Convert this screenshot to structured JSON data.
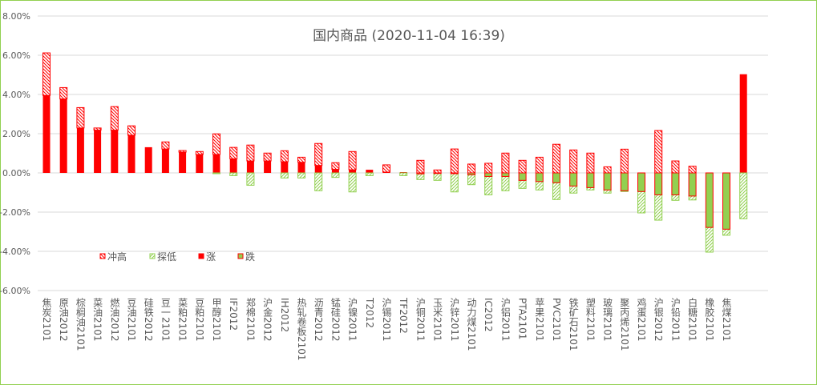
{
  "chart_data": {
    "type": "bar",
    "stacked": true,
    "title": "国内商品 (2020-11-04 16:39)",
    "ylim": [
      -6,
      8
    ],
    "yticks": [
      "8.00%",
      "6.00%",
      "4.00%",
      "2.00%",
      "0.00%",
      "-2.00%",
      "-4.00%",
      "-6.00%"
    ],
    "ytick_values": [
      8,
      6,
      4,
      2,
      0,
      -2,
      -4,
      -6
    ],
    "grid": true,
    "legend_placement": "bottom-left",
    "legend": [
      {
        "name": "冲高",
        "style": "hatch",
        "color": "#ff0000"
      },
      {
        "name": "探低",
        "style": "hatch",
        "color": "#92d050"
      },
      {
        "name": "涨",
        "style": "solid",
        "color": "#ff0000"
      },
      {
        "name": "跌",
        "style": "solid",
        "color": "#92d050"
      }
    ],
    "units": "%",
    "items": [
      {
        "name": "焦炭2101",
        "high": 6.12,
        "close": 3.95,
        "low": 0
      },
      {
        "name": "原油2012",
        "high": 4.35,
        "close": 3.77,
        "low": 0
      },
      {
        "name": "棕榈油2101",
        "high": 3.33,
        "close": 2.29,
        "low": 0
      },
      {
        "name": "菜油2101",
        "high": 2.29,
        "close": 2.18,
        "low": 0
      },
      {
        "name": "燃油2012",
        "high": 3.38,
        "close": 2.18,
        "low": 0
      },
      {
        "name": "豆油2101",
        "high": 2.4,
        "close": 1.92,
        "low": 0
      },
      {
        "name": "硅铁2012",
        "high": 1.31,
        "close": 1.31,
        "low": 0
      },
      {
        "name": "豆一2101",
        "high": 1.58,
        "close": 1.22,
        "low": 0
      },
      {
        "name": "菜粕2101",
        "high": 1.14,
        "close": 1.06,
        "low": 0
      },
      {
        "name": "豆粕2101",
        "high": 1.09,
        "close": 0.94,
        "low": 0
      },
      {
        "name": "甲醇2101",
        "high": 1.99,
        "close": 0.94,
        "low": -0.04
      },
      {
        "name": "IF2012",
        "high": 1.3,
        "close": 0.72,
        "low": -0.14
      },
      {
        "name": "郑棉2101",
        "high": 1.42,
        "close": 0.61,
        "low": -0.63
      },
      {
        "name": "沪金2012",
        "high": 1.01,
        "close": 0.61,
        "low": 0
      },
      {
        "name": "IH2012",
        "high": 1.13,
        "close": 0.57,
        "low": -0.26
      },
      {
        "name": "热轧卷板2101",
        "high": 0.8,
        "close": 0.54,
        "low": -0.26
      },
      {
        "name": "沥青2012",
        "high": 1.5,
        "close": 0.38,
        "low": -0.91
      },
      {
        "name": "锰硅2012",
        "high": 0.52,
        "close": 0.18,
        "low": -0.23
      },
      {
        "name": "沪镍2011",
        "high": 1.09,
        "close": 0.16,
        "low": -0.97
      },
      {
        "name": "T2012",
        "high": 0.16,
        "close": 0.16,
        "low": -0.14
      },
      {
        "name": "沪锡2011",
        "high": 0.41,
        "close": 0.04,
        "low": 0
      },
      {
        "name": "TF2012",
        "high": 0.04,
        "close": 0.04,
        "low": -0.14
      },
      {
        "name": "沪铜2011",
        "high": 0.64,
        "close": -0.05,
        "low": -0.34
      },
      {
        "name": "玉米2101",
        "high": 0.15,
        "close": -0.03,
        "low": -0.38
      },
      {
        "name": "沪锌2011",
        "high": 1.22,
        "close": -0.04,
        "low": -0.97
      },
      {
        "name": "动力煤2101",
        "high": 0.45,
        "close": -0.1,
        "low": -0.6
      },
      {
        "name": "IC2012",
        "high": 0.49,
        "close": -0.18,
        "low": -1.12
      },
      {
        "name": "沪铝2011",
        "high": 1.01,
        "close": -0.18,
        "low": -0.91
      },
      {
        "name": "PTA2101",
        "high": 0.64,
        "close": -0.38,
        "low": -0.79
      },
      {
        "name": "苹果2101",
        "high": 0.8,
        "close": -0.44,
        "low": -0.87
      },
      {
        "name": "PVC2101",
        "high": 1.46,
        "close": -0.5,
        "low": -1.36
      },
      {
        "name": "铁矿石2101",
        "high": 1.17,
        "close": -0.67,
        "low": -1.03
      },
      {
        "name": "塑料2101",
        "high": 1.01,
        "close": -0.75,
        "low": -0.87
      },
      {
        "name": "玻璃2101",
        "high": 0.31,
        "close": -0.87,
        "low": -1.03
      },
      {
        "name": "聚丙烯2101",
        "high": 1.21,
        "close": -0.91,
        "low": -0.95
      },
      {
        "name": "鸡蛋2101",
        "high": 0,
        "close": -0.95,
        "low": -2.04
      },
      {
        "name": "沪银2012",
        "high": 2.16,
        "close": -1.12,
        "low": -2.41
      },
      {
        "name": "沪铅2011",
        "high": 0.61,
        "close": -1.12,
        "low": -1.4
      },
      {
        "name": "白糖2101",
        "high": 0.34,
        "close": -1.18,
        "low": -1.38
      },
      {
        "name": "橡胶2101",
        "high": 0,
        "close": -2.78,
        "low": -4.04
      },
      {
        "name": "焦煤2101",
        "high": 0,
        "close": -2.87,
        "low": -3.18
      },
      {
        "name": "",
        "high": 5.03,
        "close": 5.03,
        "low": -2.34
      }
    ]
  }
}
